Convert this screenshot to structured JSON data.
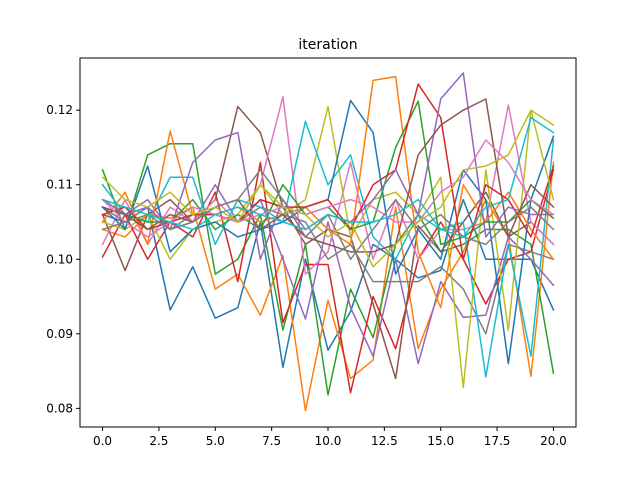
{
  "chart_data": {
    "type": "line",
    "title": "iteration",
    "xlabel": "",
    "ylabel": "",
    "xlim": [
      -1.0,
      21.0
    ],
    "ylim": [
      0.0775,
      0.127
    ],
    "x_ticks": [
      0.0,
      2.5,
      5.0,
      7.5,
      10.0,
      12.5,
      15.0,
      17.5,
      20.0
    ],
    "x_tick_labels": [
      "0.0",
      "2.5",
      "5.0",
      "7.5",
      "10.0",
      "12.5",
      "15.0",
      "17.5",
      "20.0"
    ],
    "y_ticks": [
      0.08,
      0.09,
      0.1,
      0.11,
      0.12
    ],
    "y_tick_labels": [
      "0.08",
      "0.09",
      "0.10",
      "0.11",
      "0.12"
    ],
    "grid": false,
    "legend": "none",
    "x": [
      0,
      1,
      2,
      3,
      4,
      5,
      6,
      7,
      8,
      9,
      10,
      11,
      12,
      13,
      14,
      15,
      16,
      17,
      18,
      19,
      20
    ],
    "series": [
      {
        "color": "#1f77b4",
        "values": [
          0.106,
          0.105,
          0.107,
          0.0932,
          0.099,
          0.0921,
          0.0935,
          0.105,
          0.0855,
          0.1,
          0.0878,
          0.093,
          0.102,
          0.1,
          0.0975,
          0.0985,
          0.108,
          0.1,
          0.1,
          0.1,
          0.0932
        ]
      },
      {
        "color": "#ff7f0e",
        "values": [
          0.104,
          0.103,
          0.106,
          0.1055,
          0.107,
          0.096,
          0.098,
          0.0925,
          0.1005,
          0.0797,
          0.0945,
          0.084,
          0.0865,
          0.107,
          0.088,
          0.096,
          0.101,
          0.108,
          0.103,
          0.0843,
          0.113
        ]
      },
      {
        "color": "#2ca02c",
        "values": [
          0.112,
          0.104,
          0.114,
          0.1155,
          0.1155,
          0.098,
          0.1,
          0.106,
          0.0905,
          0.102,
          0.0818,
          0.096,
          0.0895,
          0.102,
          0.106,
          0.101,
          0.102,
          0.104,
          0.104,
          0.102,
          0.0847
        ]
      },
      {
        "color": "#d62728",
        "values": [
          0.1003,
          0.106,
          0.1,
          0.105,
          0.103,
          0.109,
          0.097,
          0.113,
          0.0915,
          0.0993,
          0.0993,
          0.0821,
          0.095,
          0.088,
          0.1,
          0.105,
          0.1,
          0.094,
          0.1,
          0.101,
          0.112
        ]
      },
      {
        "color": "#9467bd",
        "values": [
          0.107,
          0.106,
          0.108,
          0.104,
          0.105,
          0.11,
          0.105,
          0.108,
          0.1,
          0.092,
          0.105,
          0.0935,
          0.087,
          0.1,
          0.086,
          0.097,
          0.0922,
          0.0925,
          0.103,
          0.1,
          0.0965
        ]
      },
      {
        "color": "#8c564b",
        "values": [
          0.106,
          0.0985,
          0.106,
          0.108,
          0.105,
          0.108,
          0.1205,
          0.117,
          0.107,
          0.102,
          0.104,
          0.103,
          0.094,
          0.084,
          0.1045,
          0.101,
          0.105,
          0.109,
          0.103,
          0.105,
          0.102
        ]
      },
      {
        "color": "#e377c2",
        "values": [
          0.102,
          0.108,
          0.102,
          0.107,
          0.105,
          0.108,
          0.105,
          0.11,
          0.1218,
          0.098,
          0.101,
          0.113,
          0.1,
          0.108,
          0.1,
          0.104,
          0.104,
          0.105,
          0.1207,
          0.105,
          0.102
        ]
      },
      {
        "color": "#7f7f7f",
        "values": [
          0.107,
          0.105,
          0.107,
          0.104,
          0.106,
          0.106,
          0.105,
          0.107,
          0.106,
          0.105,
          0.1,
          0.102,
          0.097,
          0.097,
          0.097,
          0.099,
          0.096,
          0.09,
          0.102,
          0.101,
          0.1
        ]
      },
      {
        "color": "#bcbd22",
        "values": [
          0.105,
          0.104,
          0.106,
          0.1,
          0.104,
          0.105,
          0.106,
          0.11,
          0.106,
          0.108,
          0.1205,
          0.103,
          0.108,
          0.109,
          0.106,
          0.111,
          0.0828,
          0.112,
          0.0905,
          0.12,
          0.118
        ]
      },
      {
        "color": "#17becf",
        "values": [
          0.11,
          0.106,
          0.105,
          0.111,
          0.111,
          0.102,
          0.108,
          0.107,
          0.105,
          0.1185,
          0.11,
          0.114,
          0.103,
          0.1,
          0.106,
          0.104,
          0.105,
          0.0842,
          0.102,
          0.087,
          0.116
        ]
      },
      {
        "color": "#1f77b4",
        "values": [
          0.107,
          0.104,
          0.1125,
          0.101,
          0.104,
          0.105,
          0.103,
          0.104,
          0.105,
          0.107,
          0.108,
          0.1213,
          0.117,
          0.098,
          0.104,
          0.1,
          0.112,
          0.108,
          0.086,
          0.108,
          0.1165
        ]
      },
      {
        "color": "#ff7f0e",
        "values": [
          0.105,
          0.109,
          0.102,
          0.1172,
          0.106,
          0.106,
          0.107,
          0.105,
          0.106,
          0.107,
          0.104,
          0.102,
          0.124,
          0.1245,
          0.101,
          0.0935,
          0.11,
          0.105,
          0.109,
          0.104,
          0.1
        ]
      },
      {
        "color": "#2ca02c",
        "values": [
          0.108,
          0.106,
          0.105,
          0.105,
          0.108,
          0.104,
          0.106,
          0.104,
          0.11,
          0.106,
          0.107,
          0.104,
          0.105,
          0.115,
          0.1212,
          0.102,
          0.103,
          0.105,
          0.105,
          0.108,
          0.1055
        ]
      },
      {
        "color": "#d62728",
        "values": [
          0.106,
          0.107,
          0.104,
          0.105,
          0.106,
          0.106,
          0.105,
          0.108,
          0.107,
          0.107,
          0.108,
          0.104,
          0.11,
          0.112,
          0.1235,
          0.119,
          0.1,
          0.11,
          0.108,
          0.103,
          0.1125
        ]
      },
      {
        "color": "#9467bd",
        "values": [
          0.108,
          0.106,
          0.107,
          0.104,
          0.113,
          0.116,
          0.117,
          0.1,
          0.108,
          0.104,
          0.106,
          0.105,
          0.108,
          0.112,
          0.106,
          0.1215,
          0.125,
          0.103,
          0.107,
          0.106,
          0.106
        ]
      },
      {
        "color": "#8c564b",
        "values": [
          0.107,
          0.106,
          0.104,
          0.106,
          0.105,
          0.107,
          0.108,
          0.104,
          0.106,
          0.103,
          0.102,
          0.101,
          0.101,
          0.102,
          0.114,
          0.118,
          0.12,
          0.1215,
          0.103,
          0.11,
          0.107
        ]
      },
      {
        "color": "#e377c2",
        "values": [
          0.108,
          0.105,
          0.103,
          0.105,
          0.107,
          0.106,
          0.105,
          0.106,
          0.107,
          0.106,
          0.107,
          0.108,
          0.107,
          0.105,
          0.105,
          0.109,
          0.111,
          0.116,
          0.113,
          0.108,
          0.106
        ]
      },
      {
        "color": "#7f7f7f",
        "values": [
          0.104,
          0.105,
          0.106,
          0.104,
          0.105,
          0.107,
          0.108,
          0.112,
          0.108,
          0.103,
          0.106,
          0.1,
          0.104,
          0.108,
          0.104,
          0.106,
          0.103,
          0.102,
          0.105,
          0.107,
          0.104
        ]
      },
      {
        "color": "#bcbd22",
        "values": [
          0.111,
          0.108,
          0.107,
          0.109,
          0.106,
          0.107,
          0.105,
          0.11,
          0.107,
          0.106,
          0.103,
          0.105,
          0.099,
          0.102,
          0.105,
          0.107,
          0.112,
          0.1125,
          0.114,
          0.12,
          0.108
        ]
      },
      {
        "color": "#17becf",
        "values": [
          0.108,
          0.107,
          0.106,
          0.105,
          0.104,
          0.106,
          0.107,
          0.106,
          0.105,
          0.104,
          0.106,
          0.105,
          0.105,
          0.106,
          0.108,
          0.104,
          0.103,
          0.107,
          0.108,
          0.119,
          0.117
        ]
      }
    ]
  }
}
